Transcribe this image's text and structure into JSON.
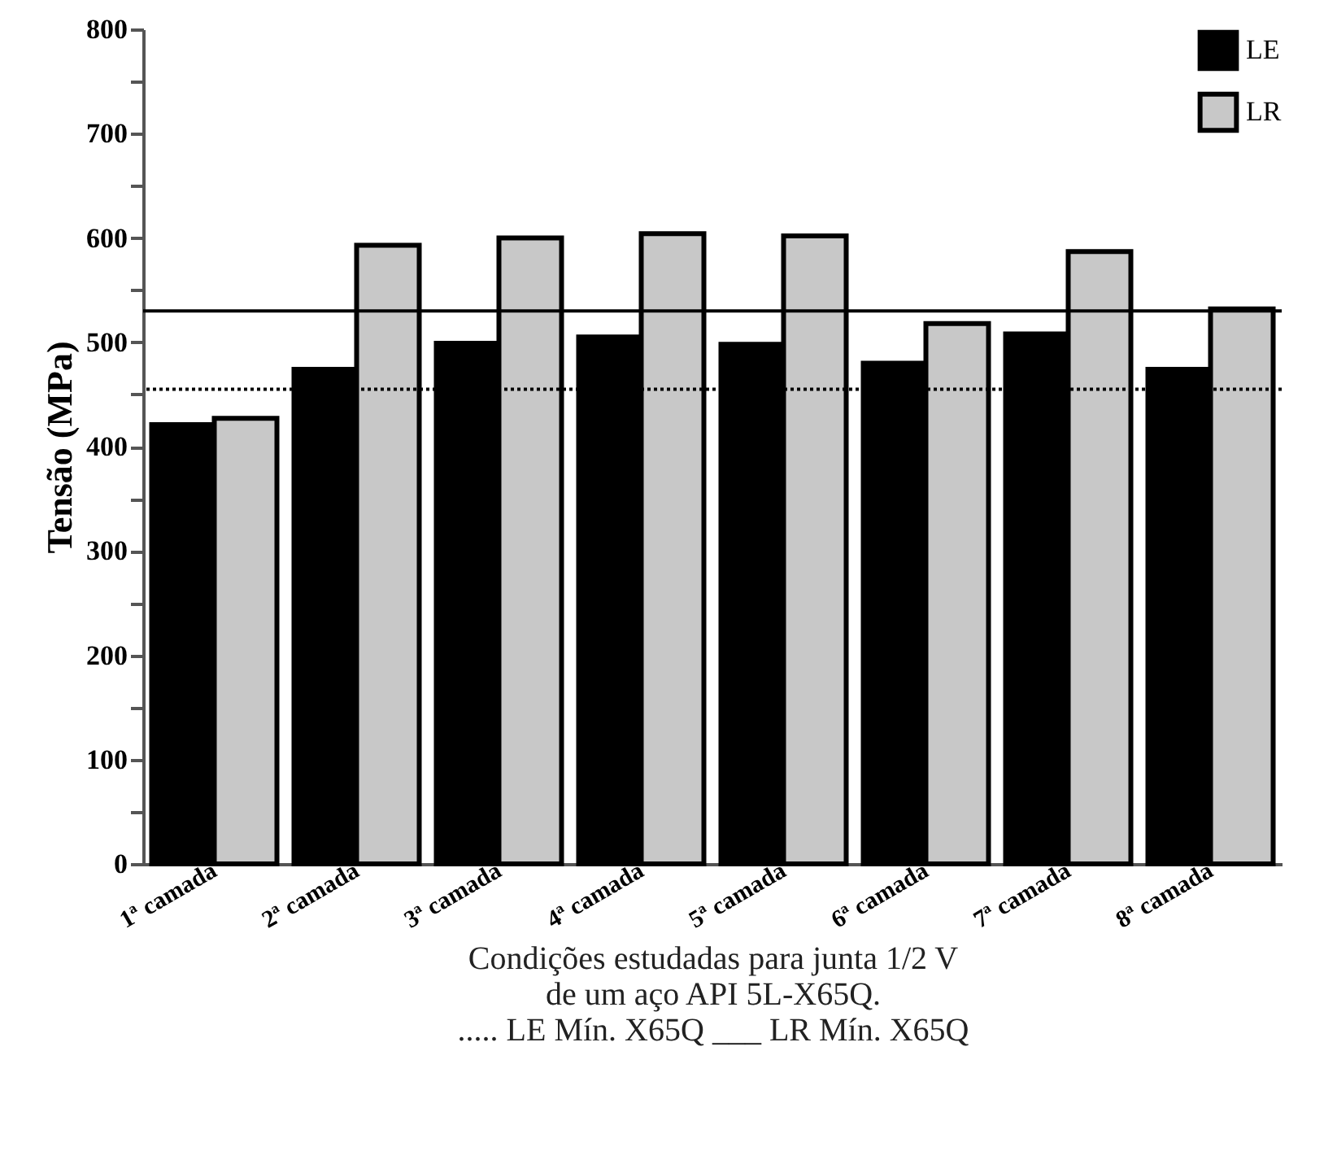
{
  "chart_data": {
    "type": "bar",
    "xlabel": "Condições  estudadas para junta 1/2 V\nde um aço API 5L-X65Q.",
    "ylabel": "Tensão (MPa)",
    "categories": [
      "1ª camada",
      "2ª camada",
      "3ª camada",
      "4ª camada",
      "5ª camada",
      "6ª camada",
      "7ª camada",
      "8ª camada"
    ],
    "series": [
      {
        "name": "LE",
        "color": "#000000",
        "values": [
          421,
          474,
          499,
          505,
          498,
          480,
          508,
          474
        ]
      },
      {
        "name": "LR",
        "color": "#c8c8c8",
        "values": [
          427,
          593,
          600,
          604,
          602,
          518,
          587,
          532
        ]
      }
    ],
    "ylim": [
      0,
      800
    ],
    "yticks": [
      0,
      {
        "value": 50,
        "label": null
      },
      100,
      {
        "value": 150,
        "label": null
      },
      200,
      {
        "value": 250,
        "label": null
      },
      300,
      {
        "value": 350,
        "label": null
      },
      400,
      {
        "value": 450,
        "label": null
      },
      500,
      {
        "value": 550,
        "label": null
      },
      600,
      {
        "value": 650,
        "label": null
      },
      700,
      {
        "value": 750,
        "label": null
      },
      800
    ],
    "ref_lines": [
      {
        "axis": "y",
        "value": 455,
        "label": "..... LE Mín. X65Q",
        "line_style": "dotted",
        "color": "#000000"
      },
      {
        "axis": "y",
        "value": 530,
        "label": "___ LR Mín. X65Q",
        "line_style": "solid",
        "color": "#000000"
      }
    ],
    "legend": "top right",
    "grid": false
  }
}
